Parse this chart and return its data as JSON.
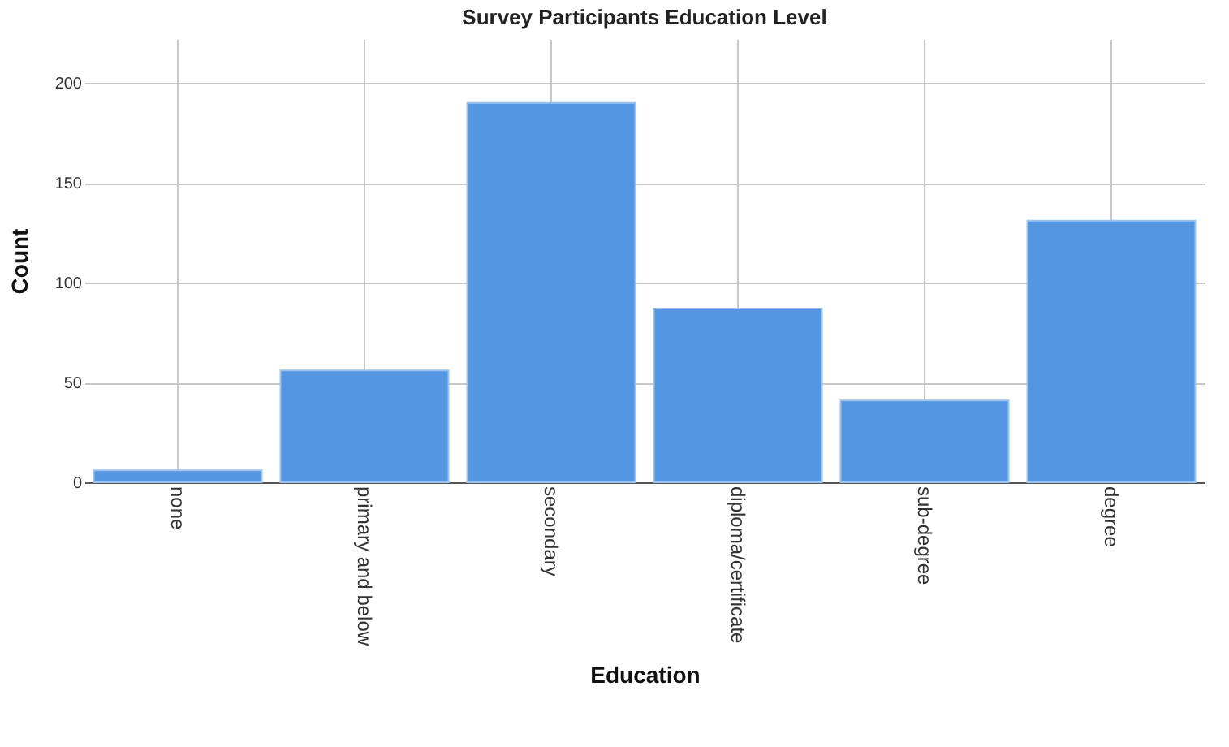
{
  "chart_data": {
    "type": "bar",
    "title": "Survey Participants Education Level",
    "xlabel": "Education",
    "ylabel": "Count",
    "categories": [
      "none",
      "primary and below",
      "secondary",
      "diploma/certificate",
      "sub-degree",
      "degree"
    ],
    "values": [
      6,
      56,
      190,
      87,
      41,
      131
    ],
    "color": "#5596e3",
    "ylim": [
      0,
      222
    ],
    "yticks": [
      0,
      50,
      100,
      150,
      200
    ],
    "grid": true
  }
}
